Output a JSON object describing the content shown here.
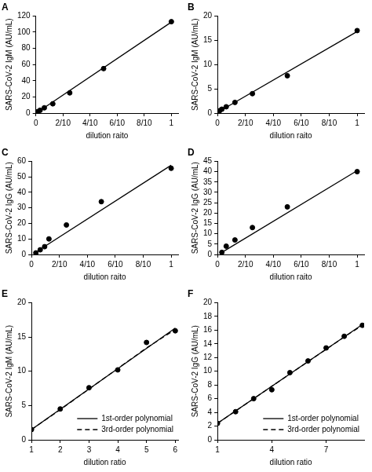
{
  "chart_data": [
    {
      "type": "scatter",
      "title": "A",
      "x_label": "dilution raito",
      "y_label": "SARS-CoV-2 IgM (AU/mL)",
      "xlim": [
        0,
        1.05
      ],
      "xticks": [
        0,
        {
          "value": 0.2,
          "label": "2/10"
        },
        {
          "value": 0.4,
          "label": "4/10"
        },
        {
          "value": 0.6,
          "label": "6/10"
        },
        {
          "value": 0.8,
          "label": "8/10"
        },
        1
      ],
      "ylim": [
        0,
        120
      ],
      "yticks": [
        0,
        20,
        40,
        60,
        80,
        100,
        120
      ],
      "grid": false,
      "series": [
        {
          "type": "scatter",
          "marker": "circle",
          "color": "#000000",
          "x": [
            0.0156,
            0.0313,
            0.0625,
            0.125,
            0.25,
            0.5,
            1
          ],
          "values": [
            1.9,
            3.5,
            6.5,
            11.5,
            25,
            55,
            113
          ]
        },
        {
          "type": "line",
          "line_style": "solid",
          "color": "#000000",
          "x": [
            0.0156,
            1
          ],
          "values": [
            1.5,
            112.5
          ]
        }
      ]
    },
    {
      "type": "scatter",
      "title": "B",
      "x_label": "dilution raito",
      "y_label": "SARS-CoV-2 IgM (AU/mL)",
      "xlim": [
        0,
        1.05
      ],
      "xticks": [
        0,
        {
          "value": 0.2,
          "label": "2/10"
        },
        {
          "value": 0.4,
          "label": "4/10"
        },
        {
          "value": 0.6,
          "label": "6/10"
        },
        {
          "value": 0.8,
          "label": "8/10"
        },
        1
      ],
      "ylim": [
        0,
        20
      ],
      "yticks": [
        0,
        5,
        10,
        15,
        20
      ],
      "grid": false,
      "series": [
        {
          "type": "scatter",
          "marker": "circle",
          "color": "#000000",
          "x": [
            0.0156,
            0.0313,
            0.0625,
            0.125,
            0.25,
            0.5,
            1
          ],
          "values": [
            0.5,
            0.8,
            1.3,
            2.2,
            4.0,
            7.7,
            17.0
          ]
        },
        {
          "type": "line",
          "line_style": "solid",
          "color": "#000000",
          "x": [
            0.0156,
            1
          ],
          "values": [
            0.4,
            16.8
          ]
        }
      ]
    },
    {
      "type": "scatter",
      "title": "C",
      "x_label": "dilution raito",
      "y_label": "SARS-CoV-2 IgG (AU/mL)",
      "xlim": [
        0,
        1.05
      ],
      "xticks": [
        0,
        {
          "value": 0.2,
          "label": "2/10"
        },
        {
          "value": 0.4,
          "label": "4/10"
        },
        {
          "value": 0.6,
          "label": "6/10"
        },
        {
          "value": 0.8,
          "label": "8/10"
        },
        1
      ],
      "ylim": [
        0,
        60
      ],
      "yticks": [
        0,
        10,
        20,
        30,
        40,
        50,
        60
      ],
      "grid": false,
      "series": [
        {
          "type": "scatter",
          "marker": "circle",
          "color": "#000000",
          "x": [
            0.0313,
            0.0625,
            0.094,
            0.125,
            0.25,
            0.5,
            1
          ],
          "values": [
            1.0,
            3.0,
            5.0,
            10.0,
            19.0,
            34.0,
            55.5
          ]
        },
        {
          "type": "line",
          "line_style": "solid",
          "color": "#000000",
          "x": [
            0.0313,
            1
          ],
          "values": [
            1.5,
            57.5
          ]
        }
      ]
    },
    {
      "type": "scatter",
      "title": "D",
      "x_label": "dilution raito",
      "y_label": "SARS-CoV-2 IgG (AU/mL)",
      "xlim": [
        0,
        1.05
      ],
      "xticks": [
        0,
        {
          "value": 0.2,
          "label": "2/10"
        },
        {
          "value": 0.4,
          "label": "4/10"
        },
        {
          "value": 0.6,
          "label": "6/10"
        },
        {
          "value": 0.8,
          "label": "8/10"
        },
        1
      ],
      "ylim": [
        0,
        45
      ],
      "yticks": [
        0,
        5,
        10,
        15,
        20,
        25,
        30,
        35,
        40,
        45
      ],
      "grid": false,
      "series": [
        {
          "type": "scatter",
          "marker": "circle",
          "color": "#000000",
          "x": [
            0.0313,
            0.0625,
            0.125,
            0.25,
            0.5,
            1
          ],
          "values": [
            1.0,
            4.0,
            7.0,
            13.0,
            23.0,
            40.0
          ]
        },
        {
          "type": "line",
          "line_style": "solid",
          "color": "#000000",
          "x": [
            0.0313,
            1
          ],
          "values": [
            1.0,
            40.5
          ]
        }
      ]
    },
    {
      "type": "scatter",
      "title": "E",
      "x_label": "dilution ratio",
      "y_label": "SARS-CoV-2 IgM (AU/mL)",
      "xlim": [
        1,
        6.1
      ],
      "xticks": [
        1,
        2,
        3,
        4,
        5,
        6
      ],
      "ylim": [
        0,
        20
      ],
      "yticks": [
        0,
        5,
        10,
        15,
        20
      ],
      "grid": false,
      "legend": "bottom-right",
      "series": [
        {
          "type": "scatter",
          "marker": "circle",
          "color": "#000000",
          "x": [
            1,
            2,
            3,
            4,
            5,
            6
          ],
          "values": [
            1.5,
            4.5,
            7.6,
            10.2,
            14.2,
            15.9
          ]
        },
        {
          "name": "1st-order polynomial",
          "type": "line",
          "line_style": "solid",
          "color": "#000000",
          "x": [
            1,
            6
          ],
          "values": [
            1.5,
            16.3
          ]
        },
        {
          "name": "3rd-order polynomial",
          "type": "line",
          "line_style": "dashed",
          "color": "#000000",
          "x": [
            1,
            2,
            3,
            4,
            5,
            6
          ],
          "values": [
            1.5,
            4.4,
            7.4,
            10.4,
            13.4,
            16.1
          ]
        }
      ]
    },
    {
      "type": "scatter",
      "title": "F",
      "x_label": "dilution ratio",
      "y_label": "SARS-CoV-2 IgG (AU/mL)",
      "xlim": [
        1,
        9.1
      ],
      "xticks": [
        1,
        4,
        7
      ],
      "ylim": [
        0,
        20
      ],
      "yticks": [
        0,
        2,
        4,
        6,
        8,
        10,
        12,
        14,
        16,
        18,
        20
      ],
      "grid": false,
      "legend": "bottom-right",
      "series": [
        {
          "type": "scatter",
          "marker": "circle",
          "color": "#000000",
          "x": [
            1,
            2,
            3,
            4,
            5,
            6,
            7,
            8,
            9
          ],
          "values": [
            2.4,
            4.1,
            6.0,
            7.3,
            9.8,
            11.5,
            13.4,
            15.1,
            16.7
          ]
        },
        {
          "name": "1st-order polynomial",
          "type": "line",
          "line_style": "solid",
          "color": "#000000",
          "x": [
            1,
            9
          ],
          "values": [
            2.4,
            16.8
          ]
        },
        {
          "name": "3rd-order polynomial",
          "type": "line",
          "line_style": "dashed",
          "color": "#000000",
          "x": [
            1,
            2,
            3,
            4,
            5,
            6,
            7,
            8,
            9
          ],
          "values": [
            2.4,
            4.2,
            6.0,
            7.8,
            9.6,
            11.4,
            13.2,
            15.0,
            16.7
          ]
        }
      ]
    }
  ]
}
